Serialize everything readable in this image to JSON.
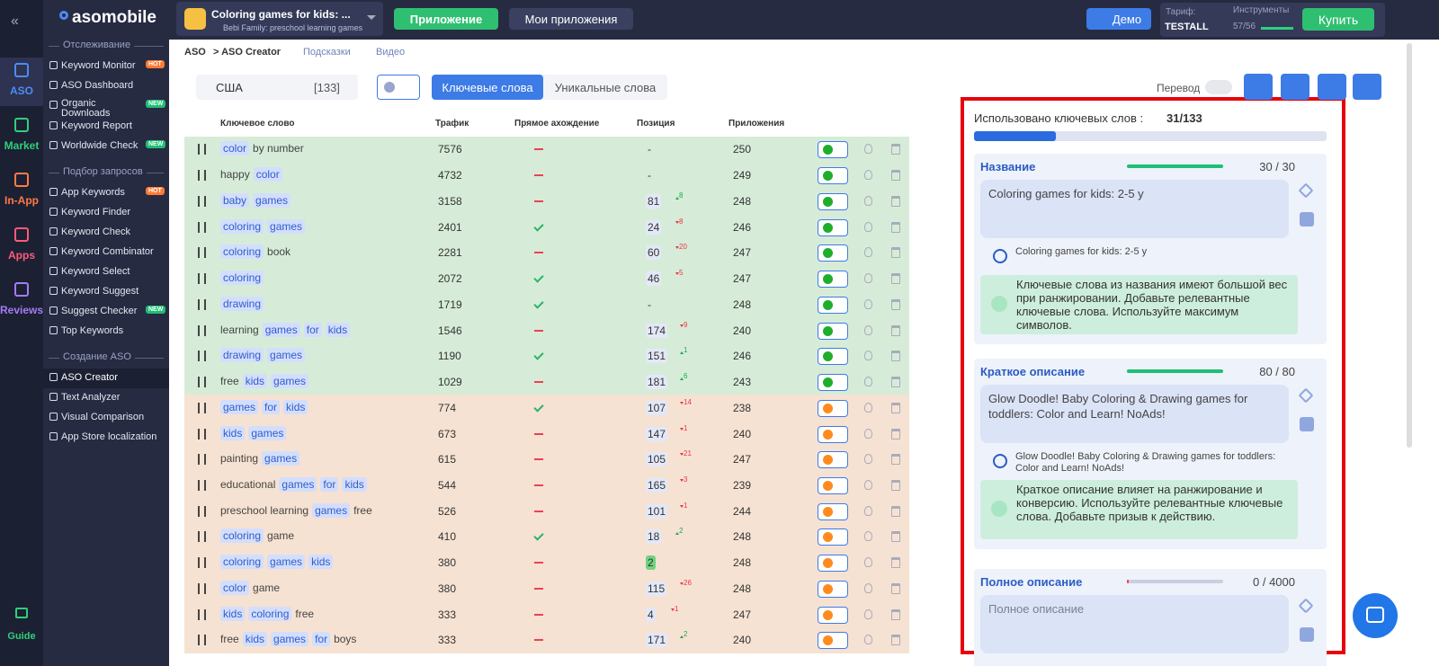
{
  "rail": [
    {
      "label": "ASO",
      "color": "#4d8bf5",
      "active": true
    },
    {
      "label": "Market",
      "color": "#2fd07a"
    },
    {
      "label": "In-App",
      "color": "#ff7a45"
    },
    {
      "label": "Apps",
      "color": "#ff5a7a"
    },
    {
      "label": "Reviews",
      "color": "#a27cf5"
    }
  ],
  "guide": "Guide",
  "logo": "asomobile",
  "sidebar": [
    {
      "title": "Отслеживание",
      "items": [
        {
          "label": "Keyword Monitor",
          "badge": "HOT"
        },
        {
          "label": "ASO Dashboard"
        },
        {
          "label": "Organic Downloads",
          "badge": "NEW"
        },
        {
          "label": "Keyword Report"
        },
        {
          "label": "Worldwide Check",
          "badge": "NEW"
        }
      ]
    },
    {
      "title": "Подбор запросов",
      "items": [
        {
          "label": "App Keywords",
          "badge": "HOT"
        },
        {
          "label": "Keyword Finder"
        },
        {
          "label": "Keyword Check"
        },
        {
          "label": "Keyword Combinator"
        },
        {
          "label": "Keyword Select"
        },
        {
          "label": "Keyword Suggest"
        },
        {
          "label": "Suggest Checker",
          "badge": "NEW"
        },
        {
          "label": "Top Keywords"
        }
      ]
    },
    {
      "title": "Создание ASO",
      "items": [
        {
          "label": "ASO Creator",
          "active": true
        },
        {
          "label": "Text Analyzer"
        },
        {
          "label": "Visual Comparison"
        },
        {
          "label": "App Store localization"
        }
      ]
    }
  ],
  "topbar": {
    "app_title": "Coloring games for kids: ...",
    "app_sub": "Bebi Family: preschool learning games",
    "add_app": "Приложение",
    "my_apps": "Мои приложения",
    "demo": "Демо",
    "plan_label": "Тариф:",
    "plan": "TESTALL",
    "tools_label": "Инструменты",
    "tools": "57/56",
    "buy": "Купить"
  },
  "breadcrumb": {
    "root": "ASO",
    "current": "> ASO Creator",
    "hints": "Подсказки",
    "video": "Видео"
  },
  "filters": {
    "country": "США",
    "count": "[133]",
    "tab_active": "Ключевые слова",
    "tab_other": "Уникальные слова",
    "translate": "Перевод"
  },
  "table": {
    "headers": [
      "Ключевое слово",
      "Трафик",
      "Прямое ахождение",
      "Позиция",
      "Приложения"
    ],
    "rows": [
      {
        "words": [
          [
            "color",
            true
          ],
          [
            "by number",
            false
          ]
        ],
        "traffic": 7576,
        "match": false,
        "position": "-",
        "change": null,
        "apps": 250,
        "status": "green"
      },
      {
        "words": [
          [
            "happy",
            false
          ],
          [
            "color",
            true
          ]
        ],
        "traffic": 4732,
        "match": false,
        "position": "-",
        "change": null,
        "apps": 249,
        "status": "green"
      },
      {
        "words": [
          [
            "baby",
            true
          ],
          [
            "games",
            true
          ]
        ],
        "traffic": 3158,
        "match": false,
        "position": 81,
        "change": 8,
        "trend": "up",
        "apps": 248,
        "status": "green"
      },
      {
        "words": [
          [
            "coloring",
            true
          ],
          [
            "games",
            true
          ]
        ],
        "traffic": 2401,
        "match": true,
        "position": 24,
        "change": 8,
        "trend": "down",
        "apps": 246,
        "status": "green"
      },
      {
        "words": [
          [
            "coloring",
            true
          ],
          [
            "book",
            false
          ]
        ],
        "traffic": 2281,
        "match": false,
        "position": 60,
        "change": 20,
        "trend": "down",
        "apps": 247,
        "status": "green"
      },
      {
        "words": [
          [
            "coloring",
            true
          ]
        ],
        "traffic": 2072,
        "match": true,
        "position": 46,
        "change": 5,
        "trend": "down",
        "apps": 247,
        "status": "green"
      },
      {
        "words": [
          [
            "drawing",
            true
          ]
        ],
        "traffic": 1719,
        "match": true,
        "position": "-",
        "change": null,
        "apps": 248,
        "status": "green"
      },
      {
        "words": [
          [
            "learning",
            false
          ],
          [
            "games",
            true
          ],
          [
            "for",
            true
          ],
          [
            "kids",
            true
          ]
        ],
        "traffic": 1546,
        "match": false,
        "position": 174,
        "change": 9,
        "trend": "down",
        "apps": 240,
        "status": "green"
      },
      {
        "words": [
          [
            "drawing",
            true
          ],
          [
            "games",
            true
          ]
        ],
        "traffic": 1190,
        "match": true,
        "position": 151,
        "change": 1,
        "trend": "up",
        "apps": 246,
        "status": "green"
      },
      {
        "words": [
          [
            "free",
            false
          ],
          [
            "kids",
            true
          ],
          [
            "games",
            true
          ]
        ],
        "traffic": 1029,
        "match": false,
        "position": 181,
        "change": 6,
        "trend": "up",
        "apps": 243,
        "status": "green"
      },
      {
        "words": [
          [
            "games",
            true
          ],
          [
            "for",
            true
          ],
          [
            "kids",
            true
          ]
        ],
        "traffic": 774,
        "match": true,
        "position": 107,
        "change": 14,
        "trend": "down",
        "apps": 238,
        "status": "orange"
      },
      {
        "words": [
          [
            "kids",
            true
          ],
          [
            "games",
            true
          ]
        ],
        "traffic": 673,
        "match": false,
        "position": 147,
        "change": 1,
        "trend": "down",
        "apps": 240,
        "status": "orange"
      },
      {
        "words": [
          [
            "painting",
            false
          ],
          [
            "games",
            true
          ]
        ],
        "traffic": 615,
        "match": false,
        "position": 105,
        "change": 21,
        "trend": "down",
        "apps": 247,
        "status": "orange"
      },
      {
        "words": [
          [
            "educational",
            false
          ],
          [
            "games",
            true
          ],
          [
            "for",
            true
          ],
          [
            "kids",
            true
          ]
        ],
        "traffic": 544,
        "match": false,
        "position": 165,
        "change": 3,
        "trend": "down",
        "apps": 239,
        "status": "orange"
      },
      {
        "words": [
          [
            "preschool learning",
            false
          ],
          [
            "games",
            true
          ],
          [
            "free",
            false
          ]
        ],
        "traffic": 526,
        "match": false,
        "position": 101,
        "change": 1,
        "trend": "down",
        "apps": 244,
        "status": "orange"
      },
      {
        "words": [
          [
            "coloring",
            true
          ],
          [
            "game",
            false
          ]
        ],
        "traffic": 410,
        "match": true,
        "position": 18,
        "change": 2,
        "trend": "up",
        "apps": 248,
        "status": "orange"
      },
      {
        "words": [
          [
            "coloring",
            true
          ],
          [
            "games",
            true
          ],
          [
            "kids",
            true
          ]
        ],
        "traffic": 380,
        "match": false,
        "position": 2,
        "position_highlight": true,
        "change": null,
        "apps": 248,
        "status": "orange"
      },
      {
        "words": [
          [
            "color",
            true
          ],
          [
            "game",
            false
          ]
        ],
        "traffic": 380,
        "match": false,
        "position": 115,
        "change": 26,
        "trend": "down",
        "apps": 248,
        "status": "orange"
      },
      {
        "words": [
          [
            "kids",
            true
          ],
          [
            "coloring",
            true
          ],
          [
            "free",
            false
          ]
        ],
        "traffic": 333,
        "match": false,
        "position": 4,
        "change": 1,
        "trend": "down",
        "apps": 247,
        "status": "orange"
      },
      {
        "words": [
          [
            "free",
            false
          ],
          [
            "kids",
            true
          ],
          [
            "games",
            true
          ],
          [
            "for",
            true
          ],
          [
            "boys",
            false
          ]
        ],
        "traffic": 333,
        "match": false,
        "position": 171,
        "change": 2,
        "trend": "up",
        "apps": 240,
        "status": "orange"
      }
    ]
  },
  "panel": {
    "used_label": "Использовано ключевых слов : ",
    "used_text": "31/133",
    "used": 31,
    "total": 133,
    "sections": [
      {
        "title": "Название",
        "count_label": "30 / 30",
        "used": 30,
        "max": 30,
        "text": "Coloring games for kids: 2-5 y",
        "preview": "Coloring games for kids: 2-5 y",
        "tip": "Ключевые слова из названия имеют большой вес при ранжировании. Добавьте релевантные ключевые слова. Используйте максимум символов."
      },
      {
        "title": "Краткое описание",
        "count_label": "80 / 80",
        "used": 80,
        "max": 80,
        "text": "Glow Doodle! Baby Coloring & Drawing games for toddlers: Color and Learn! NoAds!",
        "preview": "Glow Doodle! Baby Coloring & Drawing games for toddlers: Color and Learn! NoAds!",
        "tip": "Краткое описание влияет на ранжирование и конверсию. Используйте релевантные ключевые слова. Добавьте призыв к действию."
      },
      {
        "title": "Полное описание",
        "count_label": "0 / 4000",
        "used": 0,
        "max": 4000,
        "placeholder": "Полное описание"
      }
    ]
  }
}
